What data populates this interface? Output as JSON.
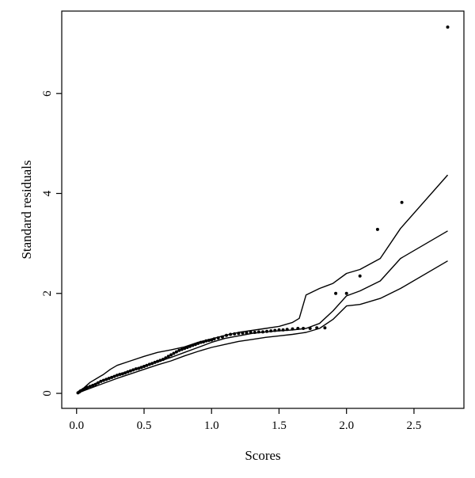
{
  "chart_data": {
    "type": "scatter",
    "title": "",
    "xlabel": "Scores",
    "ylabel": "Standard residuals",
    "xlim": [
      -0.11,
      2.87
    ],
    "ylim": [
      -0.3,
      7.65
    ],
    "xticks": [
      0.0,
      0.5,
      1.0,
      1.5,
      2.0,
      2.5
    ],
    "xtick_labels": [
      "0.0",
      "0.5",
      "1.0",
      "1.5",
      "2.0",
      "2.5"
    ],
    "yticks": [
      0,
      2,
      4,
      6
    ],
    "ytick_labels": [
      "0",
      "2",
      "4",
      "6"
    ],
    "grid": false,
    "points": [
      {
        "x": 0.01,
        "y": 0.01
      },
      {
        "x": 0.02,
        "y": 0.03
      },
      {
        "x": 0.03,
        "y": 0.05
      },
      {
        "x": 0.04,
        "y": 0.06
      },
      {
        "x": 0.05,
        "y": 0.08
      },
      {
        "x": 0.07,
        "y": 0.1
      },
      {
        "x": 0.08,
        "y": 0.12
      },
      {
        "x": 0.1,
        "y": 0.14
      },
      {
        "x": 0.12,
        "y": 0.16
      },
      {
        "x": 0.14,
        "y": 0.18
      },
      {
        "x": 0.16,
        "y": 0.21
      },
      {
        "x": 0.18,
        "y": 0.24
      },
      {
        "x": 0.2,
        "y": 0.26
      },
      {
        "x": 0.22,
        "y": 0.28
      },
      {
        "x": 0.24,
        "y": 0.3
      },
      {
        "x": 0.26,
        "y": 0.32
      },
      {
        "x": 0.28,
        "y": 0.34
      },
      {
        "x": 0.3,
        "y": 0.36
      },
      {
        "x": 0.32,
        "y": 0.38
      },
      {
        "x": 0.34,
        "y": 0.39
      },
      {
        "x": 0.36,
        "y": 0.41
      },
      {
        "x": 0.38,
        "y": 0.43
      },
      {
        "x": 0.4,
        "y": 0.45
      },
      {
        "x": 0.42,
        "y": 0.47
      },
      {
        "x": 0.44,
        "y": 0.49
      },
      {
        "x": 0.46,
        "y": 0.5
      },
      {
        "x": 0.48,
        "y": 0.52
      },
      {
        "x": 0.5,
        "y": 0.54
      },
      {
        "x": 0.52,
        "y": 0.56
      },
      {
        "x": 0.54,
        "y": 0.58
      },
      {
        "x": 0.56,
        "y": 0.6
      },
      {
        "x": 0.58,
        "y": 0.62
      },
      {
        "x": 0.6,
        "y": 0.64
      },
      {
        "x": 0.62,
        "y": 0.66
      },
      {
        "x": 0.64,
        "y": 0.68
      },
      {
        "x": 0.66,
        "y": 0.71
      },
      {
        "x": 0.68,
        "y": 0.74
      },
      {
        "x": 0.7,
        "y": 0.77
      },
      {
        "x": 0.72,
        "y": 0.8
      },
      {
        "x": 0.74,
        "y": 0.83
      },
      {
        "x": 0.76,
        "y": 0.86
      },
      {
        "x": 0.78,
        "y": 0.88
      },
      {
        "x": 0.8,
        "y": 0.9
      },
      {
        "x": 0.82,
        "y": 0.92
      },
      {
        "x": 0.84,
        "y": 0.94
      },
      {
        "x": 0.86,
        "y": 0.96
      },
      {
        "x": 0.88,
        "y": 0.98
      },
      {
        "x": 0.9,
        "y": 1.0
      },
      {
        "x": 0.92,
        "y": 1.02
      },
      {
        "x": 0.94,
        "y": 1.03
      },
      {
        "x": 0.96,
        "y": 1.05
      },
      {
        "x": 0.98,
        "y": 1.06
      },
      {
        "x": 1.0,
        "y": 1.07
      },
      {
        "x": 1.02,
        "y": 1.09
      },
      {
        "x": 1.05,
        "y": 1.11
      },
      {
        "x": 1.08,
        "y": 1.13
      },
      {
        "x": 1.11,
        "y": 1.16
      },
      {
        "x": 1.14,
        "y": 1.18
      },
      {
        "x": 1.17,
        "y": 1.19
      },
      {
        "x": 1.2,
        "y": 1.2
      },
      {
        "x": 1.23,
        "y": 1.21
      },
      {
        "x": 1.26,
        "y": 1.21
      },
      {
        "x": 1.29,
        "y": 1.22
      },
      {
        "x": 1.32,
        "y": 1.22
      },
      {
        "x": 1.35,
        "y": 1.23
      },
      {
        "x": 1.38,
        "y": 1.23
      },
      {
        "x": 1.41,
        "y": 1.24
      },
      {
        "x": 1.44,
        "y": 1.25
      },
      {
        "x": 1.47,
        "y": 1.26
      },
      {
        "x": 1.5,
        "y": 1.27
      },
      {
        "x": 1.53,
        "y": 1.27
      },
      {
        "x": 1.56,
        "y": 1.28
      },
      {
        "x": 1.6,
        "y": 1.29
      },
      {
        "x": 1.64,
        "y": 1.3
      },
      {
        "x": 1.68,
        "y": 1.3
      },
      {
        "x": 1.73,
        "y": 1.3
      },
      {
        "x": 1.78,
        "y": 1.31
      },
      {
        "x": 1.84,
        "y": 1.31
      },
      {
        "x": 1.92,
        "y": 2.0
      },
      {
        "x": 2.0,
        "y": 2.0
      },
      {
        "x": 2.1,
        "y": 2.35
      },
      {
        "x": 2.23,
        "y": 3.28
      },
      {
        "x": 2.41,
        "y": 3.82
      },
      {
        "x": 2.75,
        "y": 7.33
      }
    ],
    "series": [
      {
        "style": "line",
        "x": [
          0.0,
          0.05,
          0.1,
          0.15,
          0.2,
          0.25,
          0.3,
          0.4,
          0.5,
          0.6,
          0.7,
          0.8,
          0.9,
          1.0,
          1.1,
          1.2,
          1.3,
          1.4,
          1.5,
          1.6,
          1.65,
          1.7,
          1.8,
          1.85,
          1.9,
          2.0,
          2.1,
          2.25,
          2.4,
          2.75
        ],
        "y": [
          0.0,
          0.1,
          0.22,
          0.3,
          0.38,
          0.48,
          0.56,
          0.65,
          0.74,
          0.82,
          0.87,
          0.93,
          1.02,
          1.09,
          1.16,
          1.22,
          1.26,
          1.3,
          1.34,
          1.42,
          1.5,
          1.97,
          2.1,
          2.15,
          2.2,
          2.4,
          2.48,
          2.7,
          3.3,
          4.37
        ]
      },
      {
        "style": "line",
        "x": [
          0.0,
          0.1,
          0.2,
          0.3,
          0.4,
          0.5,
          0.6,
          0.7,
          0.8,
          0.9,
          1.0,
          1.1,
          1.2,
          1.3,
          1.4,
          1.5,
          1.6,
          1.7,
          1.8,
          1.9,
          2.0,
          2.1,
          2.25,
          2.4,
          2.75
        ],
        "y": [
          0.0,
          0.15,
          0.27,
          0.37,
          0.46,
          0.55,
          0.63,
          0.72,
          0.82,
          0.92,
          1.02,
          1.1,
          1.15,
          1.2,
          1.23,
          1.25,
          1.27,
          1.3,
          1.4,
          1.65,
          1.95,
          2.05,
          2.25,
          2.7,
          3.25
        ]
      },
      {
        "style": "line",
        "x": [
          0.0,
          0.1,
          0.2,
          0.3,
          0.4,
          0.5,
          0.6,
          0.7,
          0.8,
          0.9,
          1.0,
          1.1,
          1.2,
          1.3,
          1.4,
          1.5,
          1.6,
          1.7,
          1.8,
          1.9,
          2.0,
          2.1,
          2.25,
          2.4,
          2.75
        ],
        "y": [
          0.0,
          0.1,
          0.2,
          0.3,
          0.39,
          0.48,
          0.57,
          0.65,
          0.75,
          0.84,
          0.92,
          0.98,
          1.04,
          1.08,
          1.12,
          1.15,
          1.18,
          1.22,
          1.3,
          1.48,
          1.75,
          1.78,
          1.9,
          2.1,
          2.65
        ]
      }
    ]
  }
}
